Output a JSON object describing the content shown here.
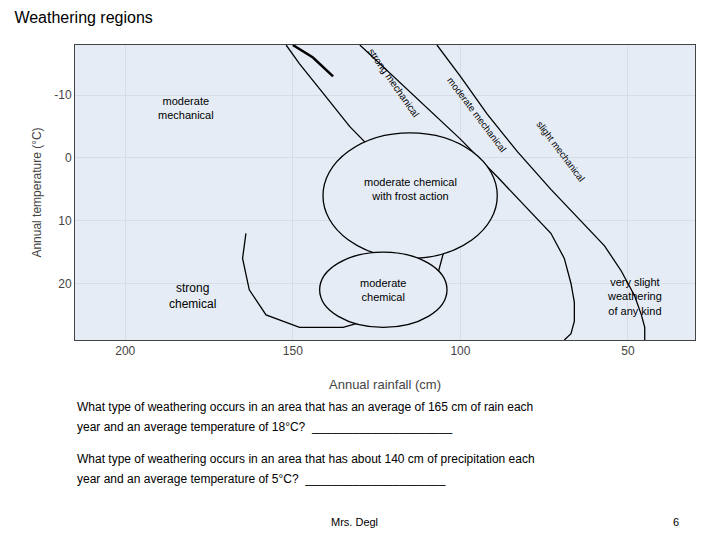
{
  "chart_data": {
    "type": "line",
    "title": "Weathering regions",
    "x_label": "Annual rainfall (cm)",
    "y_label": "Annual temperature (°C)",
    "xlim": [
      215,
      30
    ],
    "ylim": [
      29,
      -18
    ],
    "xticks": [
      200,
      150,
      100,
      50
    ],
    "yticks": [
      -10,
      0,
      10,
      20
    ],
    "series": [
      {
        "x": [
          152,
          148,
          142,
          133,
          122,
          112,
          107,
          105,
          107,
          112,
          122,
          135,
          148,
          158,
          163,
          165,
          164
        ],
        "values": [
          -18,
          -15,
          -11,
          -5,
          1,
          6,
          11,
          15,
          19,
          22,
          25,
          27,
          27,
          25,
          21,
          16,
          12
        ],
        "color": "black",
        "line_style": "solid"
      },
      {
        "x": [
          130,
          122,
          112,
          100,
          89,
          80,
          73,
          69,
          67,
          66,
          66,
          67,
          69
        ],
        "values": [
          -18,
          -14,
          -9,
          -3,
          3,
          8,
          12,
          16,
          20,
          23,
          26,
          28,
          29
        ],
        "color": "black",
        "line_style": "solid"
      },
      {
        "x": [
          107,
          100,
          92,
          83,
          73,
          64,
          57,
          52,
          48,
          46,
          45,
          45
        ],
        "values": [
          -18,
          -13,
          -7,
          -1,
          5,
          10,
          14,
          18,
          22,
          25,
          27,
          29
        ],
        "color": "black",
        "line_style": "solid"
      },
      {
        "x": [
          150,
          144,
          138
        ],
        "values": [
          -18,
          -16,
          -13
        ],
        "color": "black",
        "line_style": "thick"
      }
    ],
    "ellipses": [
      {
        "x": 115,
        "y": 6,
        "width": 52,
        "height": 20
      },
      {
        "x": 123,
        "y": 21,
        "width": 38,
        "height": 12
      }
    ],
    "annotations": [
      {
        "x": 182,
        "y": -8,
        "text": "moderate\nmechanical"
      },
      {
        "x": 120,
        "y": -12,
        "text": "strong mechanical"
      },
      {
        "x": 95,
        "y": -7,
        "text": "moderate mechanical"
      },
      {
        "x": 70,
        "y": -1,
        "text": "slight mechanical"
      },
      {
        "x": 115,
        "y": 5,
        "text": "moderate chemical\nwith frost action"
      },
      {
        "x": 180,
        "y": 22,
        "text": "strong\nchemical"
      },
      {
        "x": 123,
        "y": 21,
        "text": "moderate\nchemical"
      },
      {
        "x": 48,
        "y": 22,
        "text": "very slight\nweathering\nof any kind"
      }
    ],
    "notes": [
      "What type of weathering occurs in an area that has an average of 165 cm of rain each",
      "year and an average temperature of 18°C?  _____________________",
      "What type of weathering occurs in an area that has about 140 cm of precipitation each",
      "year and an average temperature of 5°C?  _____________________"
    ],
    "footer": [
      "Mrs. Degl",
      "6"
    ]
  }
}
